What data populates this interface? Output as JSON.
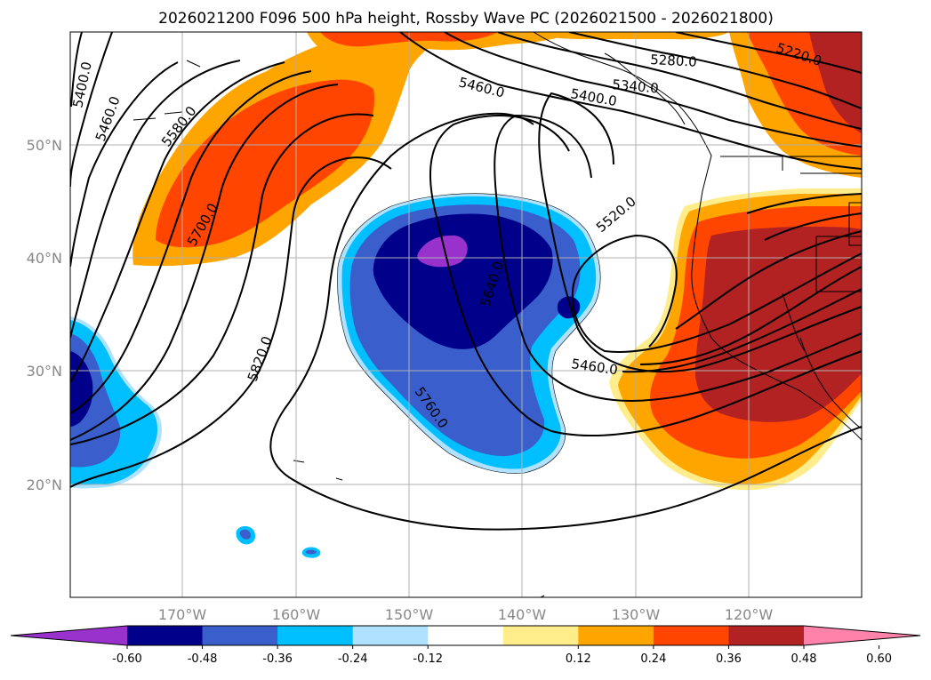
{
  "title": "2026021200 F096 500 hPa height, Rossby Wave PC (2026021500 - 2026021800)",
  "axes": {
    "lon_labels": [
      "170°W",
      "160°W",
      "150°W",
      "140°W",
      "130°W",
      "120°W"
    ],
    "lat_labels": [
      "50°N",
      "40°N",
      "30°N",
      "20°N"
    ]
  },
  "contour_labels": [
    "5400.0",
    "5460.0",
    "5580.0",
    "5700.0",
    "5820.0",
    "5460.0",
    "5400.0",
    "5340.0",
    "5280.0",
    "5220.0",
    "5520.0",
    "5640.0",
    "5460.0",
    "5760.0"
  ],
  "colorbar": {
    "colors": [
      "#9932cc",
      "#00008b",
      "#3a5fcd",
      "#00bfff",
      "#b0e2ff",
      "#ffffff",
      "#ffec8b",
      "#ffa500",
      "#ff4500",
      "#b22222",
      "#ff82ab"
    ],
    "tick_labels": [
      "-0.60",
      "-0.48",
      "-0.36",
      "-0.24",
      "-0.12",
      "0.12",
      "0.24",
      "0.36",
      "0.48",
      "0.60"
    ]
  }
}
